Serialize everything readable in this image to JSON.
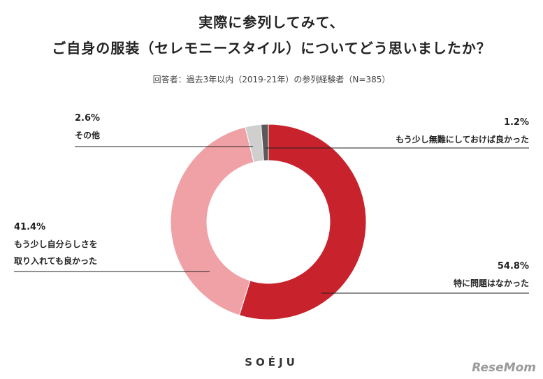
{
  "title": {
    "line1": "実際に参列してみて、",
    "line2": "ご自身の服装（セレモニースタイル）についてどう思いましたか？"
  },
  "subtitle": "回答者：過去3年以内（2019-21年）の参列経験者（N=385）",
  "chart_data": {
    "type": "pie",
    "donut": true,
    "slices": [
      {
        "label": "特に問題はなかった",
        "value": 54.8,
        "display": "54.8%",
        "color": "#c8232c"
      },
      {
        "label": "もう少し自分らしさを取り入れても良かった",
        "value": 41.4,
        "display": "41.4%",
        "color": "#f0a1a6"
      },
      {
        "label": "その他",
        "value": 2.6,
        "display": "2.6%",
        "color": "#cfcfcf"
      },
      {
        "label": "もう少し無難にしておけば良かった",
        "value": 1.2,
        "display": "1.2%",
        "color": "#5a5a5a"
      }
    ]
  },
  "labels": {
    "problem_none": {
      "pct": "54.8%",
      "text": "特に問題はなかった"
    },
    "more_self": {
      "pct": "41.4%",
      "line1": "もう少し自分らしさを",
      "line2": "取り入れても良かった"
    },
    "other": {
      "pct": "2.6%",
      "text": "その他"
    },
    "safer": {
      "pct": "1.2%",
      "text": "もう少し無難にしておけば良かった"
    }
  },
  "logo": "SOÉJU",
  "watermark": "ReseMom"
}
